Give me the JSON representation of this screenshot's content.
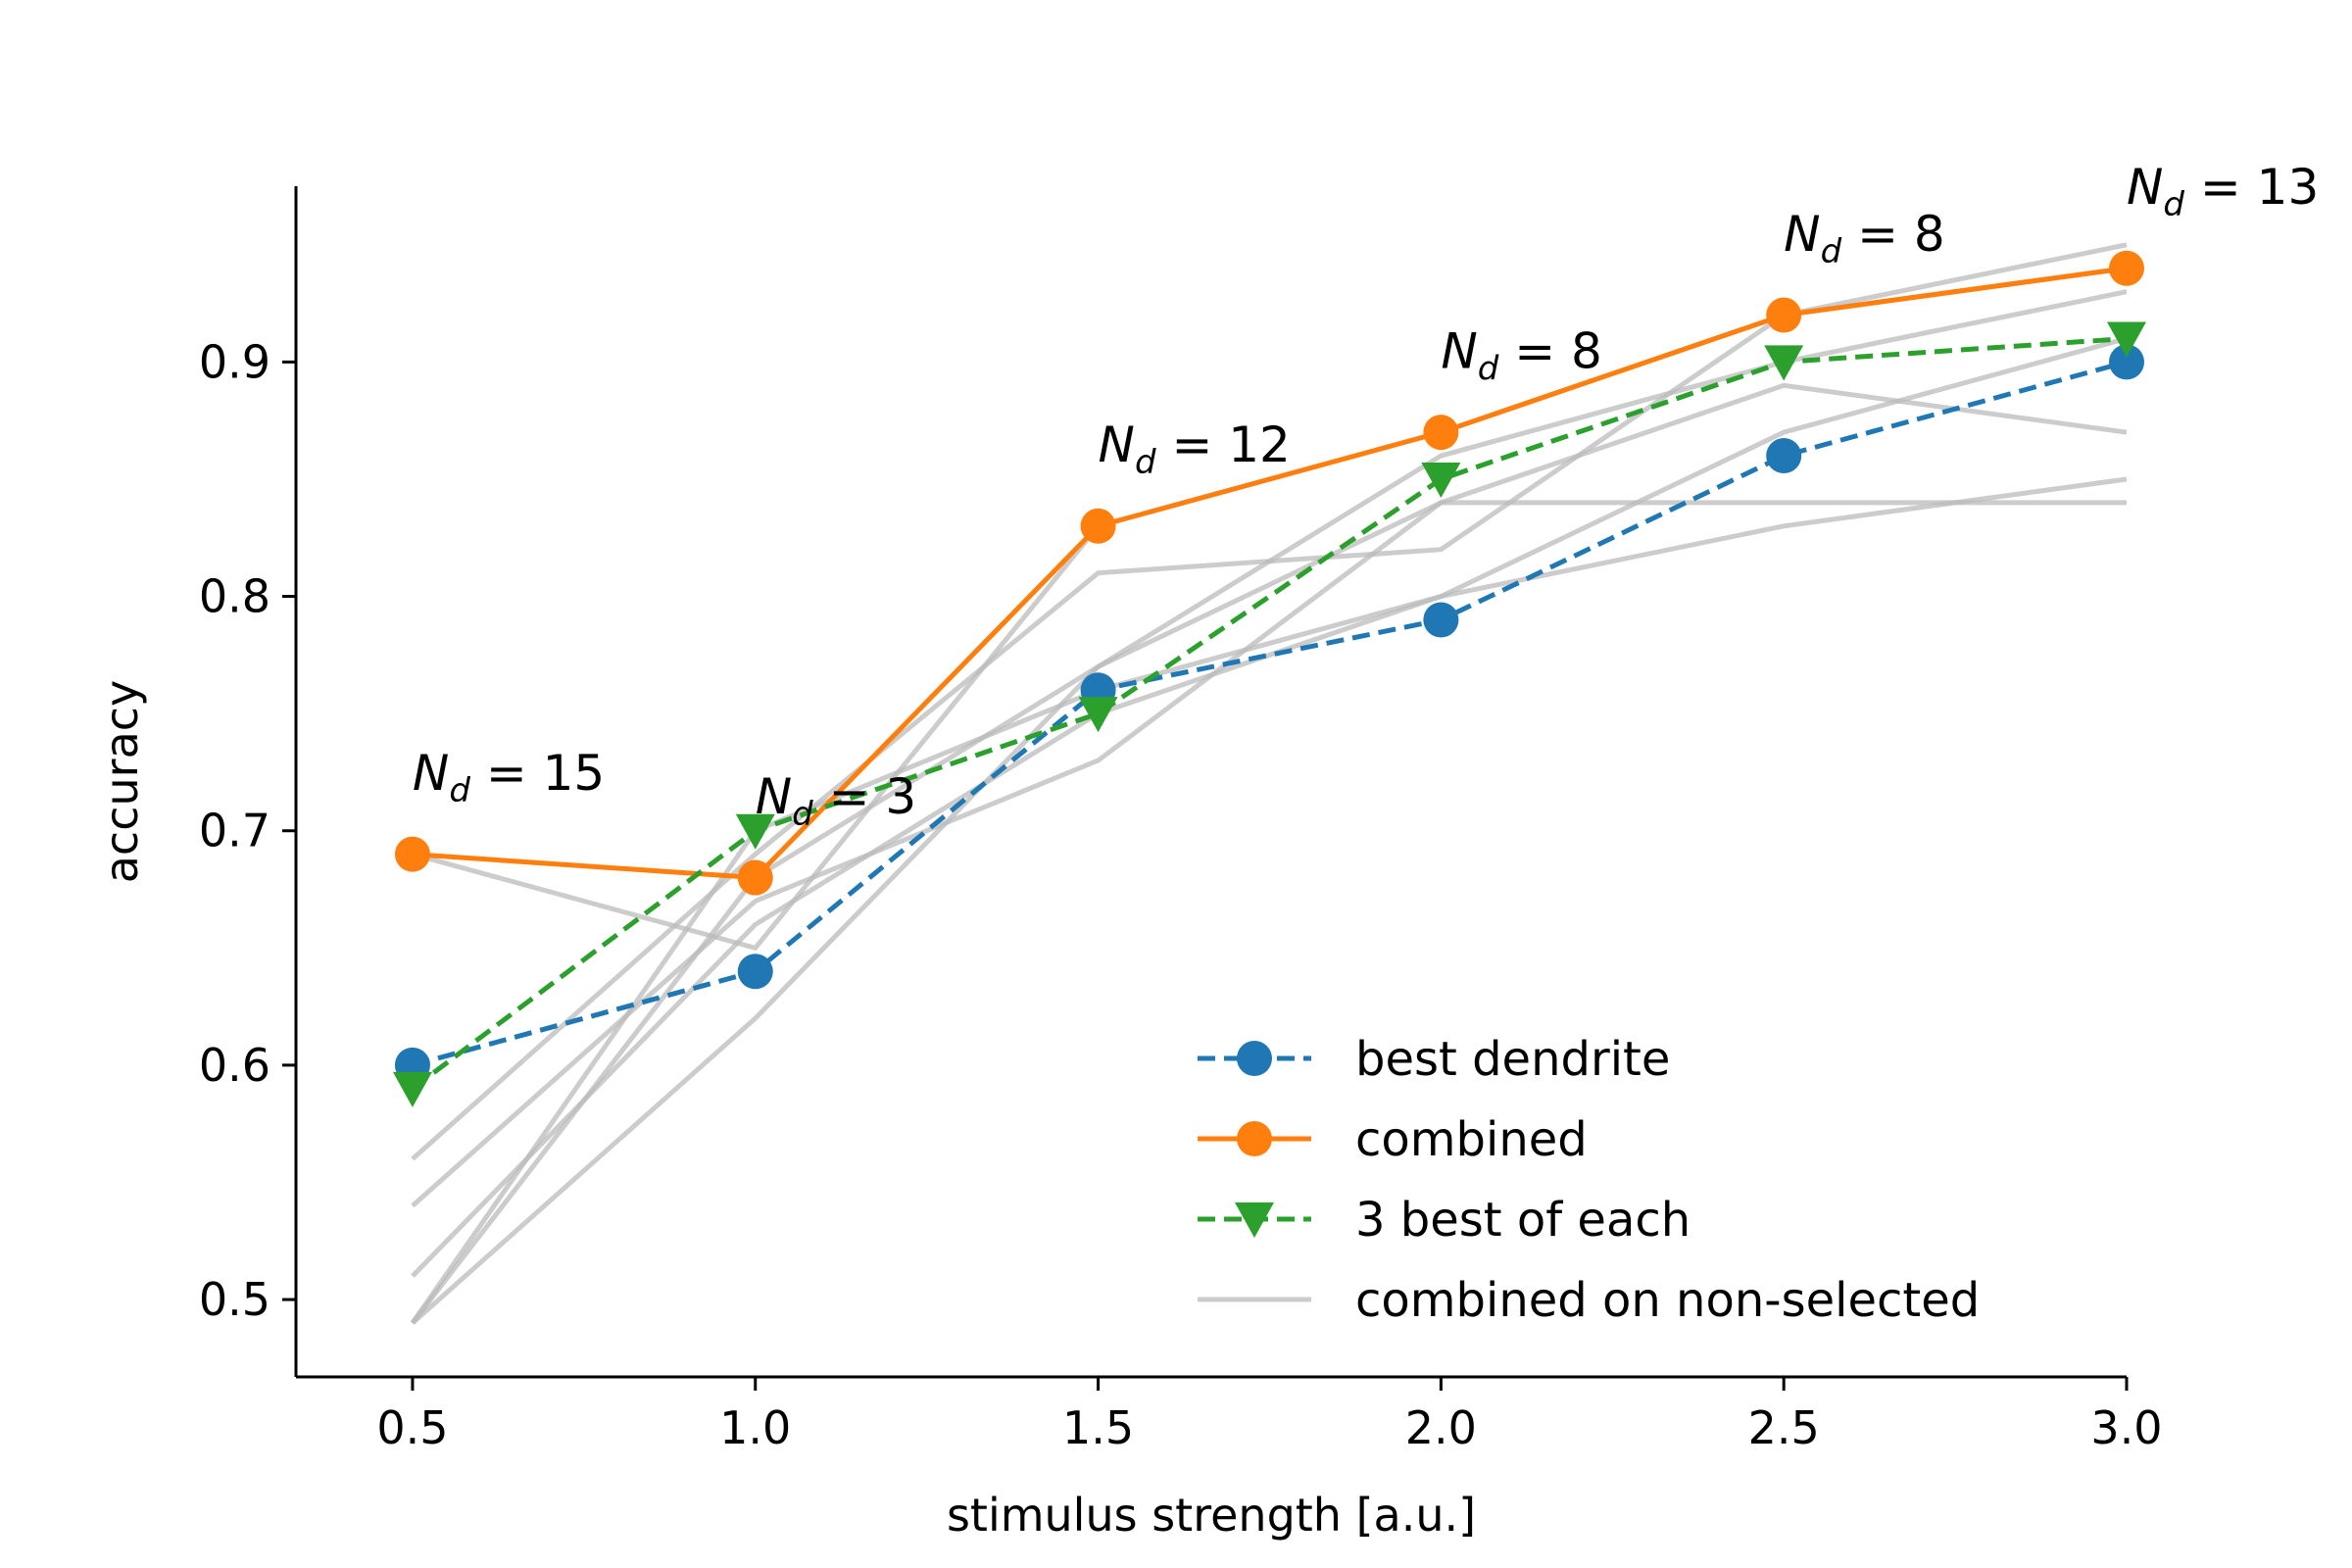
{
  "chart_data": {
    "type": "line",
    "xlabel": "stimulus strength [a.u.]",
    "ylabel": "accuracy",
    "xlim": [
      0.33,
      3.0
    ],
    "ylim": [
      0.467,
      0.975
    ],
    "xticks": [
      0.5,
      1.0,
      1.5,
      2.0,
      2.5,
      3.0
    ],
    "xtick_labels": [
      "0.5",
      "1.0",
      "1.5",
      "2.0",
      "2.5",
      "3.0"
    ],
    "yticks": [
      0.5,
      0.6,
      0.7,
      0.8,
      0.9
    ],
    "ytick_labels": [
      "0.5",
      "0.6",
      "0.7",
      "0.8",
      "0.9"
    ],
    "grid": false,
    "legend_placement": "lower-right",
    "x": [
      0.5,
      1.0,
      1.5,
      2.0,
      2.5,
      3.0
    ],
    "series": [
      {
        "name": "best dendrite",
        "color": "#1f77b4",
        "dash": "dashed",
        "marker": "circle",
        "values": [
          0.6,
          0.64,
          0.76,
          0.79,
          0.86,
          0.9
        ]
      },
      {
        "name": "combined",
        "color": "#ff7f0e",
        "dash": "solid",
        "marker": "circle",
        "values": [
          0.69,
          0.68,
          0.83,
          0.87,
          0.92,
          0.94
        ]
      },
      {
        "name": "3 best of each",
        "color": "#2ca02c",
        "dash": "dashed",
        "marker": "triangle-down",
        "values": [
          0.59,
          0.7,
          0.75,
          0.85,
          0.9,
          0.91
        ]
      },
      {
        "name": "combined on non-selected",
        "color": "#bbbbbb",
        "dash": "solid",
        "marker": "none",
        "values": [
          0.69,
          0.65,
          0.83,
          0.87,
          0.92,
          0.95
        ]
      }
    ],
    "background_series": [
      [
        0.69,
        0.65,
        0.83,
        0.87,
        0.92,
        0.95
      ],
      [
        0.56,
        0.69,
        0.81,
        0.82,
        0.92,
        0.94
      ],
      [
        0.54,
        0.67,
        0.73,
        0.84,
        0.89,
        0.87
      ],
      [
        0.51,
        0.66,
        0.75,
        0.8,
        0.87,
        0.91
      ],
      [
        0.49,
        0.68,
        0.77,
        0.86,
        0.9,
        0.93
      ],
      [
        0.49,
        0.62,
        0.77,
        0.84,
        0.84,
        0.84
      ],
      [
        0.49,
        0.7,
        0.76,
        0.8,
        0.83,
        0.85
      ]
    ],
    "annotations": [
      {
        "x": 0.5,
        "y": 0.73,
        "base": "N",
        "sub": "d",
        "rest": " = 15"
      },
      {
        "x": 1.0,
        "y": 0.72,
        "base": "N",
        "sub": "d",
        "rest": " = 3"
      },
      {
        "x": 1.5,
        "y": 0.87,
        "base": "N",
        "sub": "d",
        "rest": " = 12"
      },
      {
        "x": 2.0,
        "y": 0.91,
        "base": "N",
        "sub": "d",
        "rest": " = 8"
      },
      {
        "x": 2.5,
        "y": 0.96,
        "base": "N",
        "sub": "d",
        "rest": " = 8"
      },
      {
        "x": 3.0,
        "y": 0.98,
        "base": "N",
        "sub": "d",
        "rest": " = 13"
      }
    ]
  }
}
